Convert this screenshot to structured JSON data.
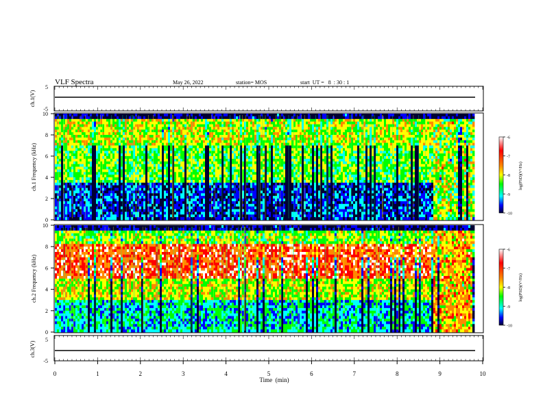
{
  "header": {
    "title": "VLF Spectra",
    "date": "May 26, 2022",
    "station": "station= MOS",
    "start_ut": "start  UT =   8  : 30 : 1"
  },
  "colors": {
    "colormap": [
      "#ffffff",
      "#ff0000",
      "#ff8800",
      "#ffff00",
      "#00ff00",
      "#00ffff",
      "#0000ff",
      "#000033"
    ],
    "axes": "#000000",
    "background": "#ffffff"
  },
  "chart_data": [
    {
      "type": "line",
      "panel": "ch1-waveform",
      "ylabel": "ch.1(V)",
      "xlim": [
        0,
        10
      ],
      "ylim": [
        -5,
        5
      ],
      "yticks": [
        "5",
        "-5"
      ],
      "series": [
        {
          "x": [
            0,
            10
          ],
          "y": [
            0,
            0
          ]
        }
      ]
    },
    {
      "type": "heatmap",
      "panel": "ch1-spectrogram",
      "ylabel": "ch.1 Frequency (kHz)",
      "xlim": [
        0,
        10
      ],
      "ylim": [
        0,
        10
      ],
      "yticks": [
        "0",
        "2",
        "4",
        "6",
        "8",
        "10"
      ],
      "colorbar": {
        "label": "log(PSD)(V²/Hz)",
        "range": [
          -10,
          -6
        ],
        "ticks": [
          "-6",
          "-7",
          "-8",
          "-9",
          "-10"
        ]
      }
    },
    {
      "type": "heatmap",
      "panel": "ch2-spectrogram",
      "ylabel": "ch.2 Frequency (kHz)",
      "xlim": [
        0,
        10
      ],
      "ylim": [
        0,
        10
      ],
      "yticks": [
        "0",
        "2",
        "4",
        "6",
        "8",
        "10"
      ],
      "colorbar": {
        "label": "log(PSD)(V²/Hz)",
        "range": [
          -10,
          -6
        ],
        "ticks": [
          "-6",
          "-7",
          "-8",
          "-9",
          "-10"
        ]
      }
    },
    {
      "type": "line",
      "panel": "ch3-waveform",
      "ylabel": "ch.3(V)",
      "xlim": [
        0,
        10
      ],
      "ylim": [
        -5,
        5
      ],
      "yticks": [
        "5",
        "-5"
      ],
      "series": [
        {
          "x": [
            0,
            10
          ],
          "y": [
            0,
            0
          ]
        }
      ]
    }
  ],
  "xaxis": {
    "label": "Time  (min)",
    "ticks": [
      "0",
      "1",
      "2",
      "3",
      "4",
      "5",
      "6",
      "7",
      "8",
      "9",
      "10"
    ]
  }
}
